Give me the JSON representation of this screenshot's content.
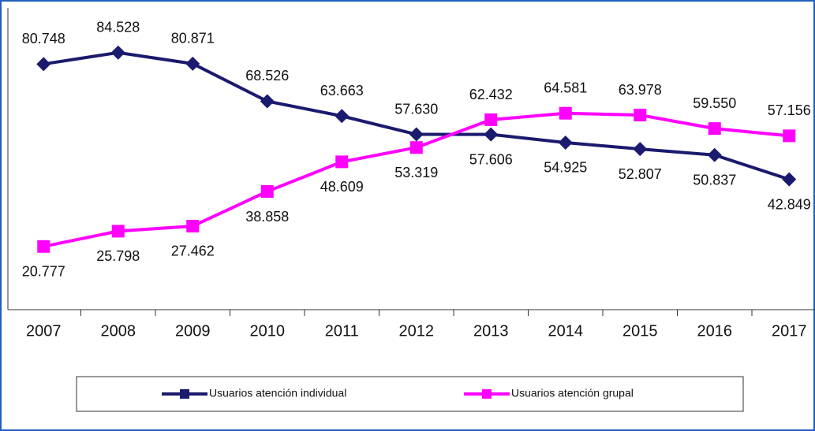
{
  "chart_data": {
    "type": "line",
    "categories": [
      "2007",
      "2008",
      "2009",
      "2010",
      "2011",
      "2012",
      "2013",
      "2014",
      "2015",
      "2016",
      "2017"
    ],
    "series": [
      {
        "name": "Usuarios atención individual",
        "color": "#1a1a6e",
        "marker": "diamond",
        "values": [
          80748,
          84528,
          80871,
          68526,
          63663,
          57630,
          57606,
          54925,
          52807,
          50837,
          42849
        ],
        "value_labels": [
          "80.748",
          "84.528",
          "80.871",
          "68.526",
          "63.663",
          "57.630",
          "57.606",
          "54.925",
          "52.807",
          "50.837",
          "42.849"
        ]
      },
      {
        "name": "Usuarios atención grupal",
        "color": "#ff00ff",
        "marker": "square",
        "values": [
          20777,
          25798,
          27462,
          38858,
          48609,
          53319,
          62432,
          64581,
          63978,
          59550,
          57156
        ],
        "value_labels": [
          "20.777",
          "25.798",
          "27.462",
          "38.858",
          "48.609",
          "53.319",
          "62.432",
          "64.581",
          "63.978",
          "59.550",
          "57.156"
        ]
      }
    ],
    "ylim": [
      0,
      100000
    ]
  }
}
